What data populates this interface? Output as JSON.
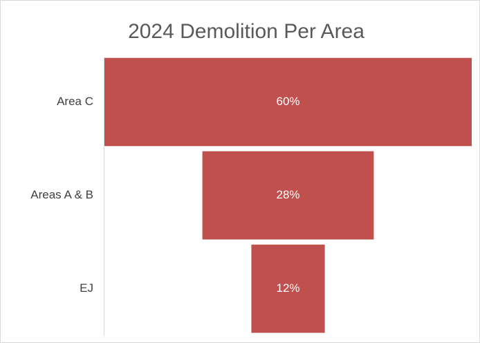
{
  "chart_data": {
    "type": "funnel",
    "title": "2024 Demolition Per Area",
    "categories": [
      "Area C",
      "Areas A & B",
      "EJ"
    ],
    "values": [
      60,
      28,
      12
    ],
    "value_labels": [
      "60%",
      "28%",
      "12%"
    ],
    "color": "#c0504d"
  }
}
